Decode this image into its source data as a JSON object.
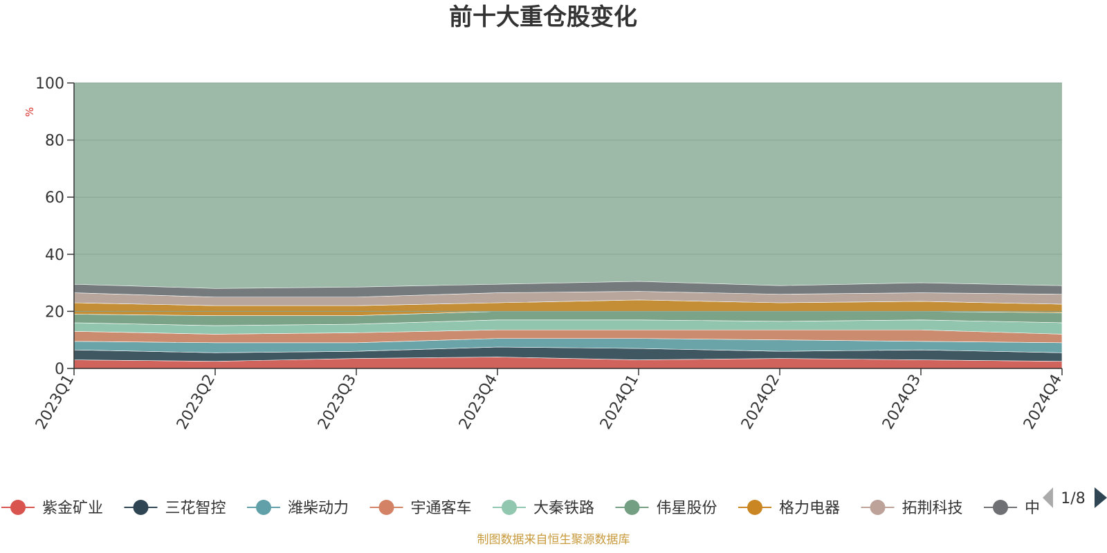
{
  "colors": {
    "background_series": "#9dbaa8",
    "grid": "#86a593",
    "axis": "#333333",
    "source_text": "#c89a3c",
    "unit_text": "#d9312b",
    "pager_inactive": "#aaaaaa",
    "pager_active": "#2f4554"
  },
  "chart_data": {
    "type": "area",
    "title": "前十大重仓股变化",
    "ylabel": "%",
    "ylim": [
      0,
      100
    ],
    "yticks": [
      0,
      20,
      40,
      60,
      80,
      100
    ],
    "grid": true,
    "legend_position": "bottom",
    "categories": [
      "2023Q1",
      "2023Q2",
      "2023Q3",
      "2023Q4",
      "2024Q1",
      "2024Q2",
      "2024Q3",
      "2024Q4"
    ],
    "series": [
      {
        "name": "紫金矿业",
        "color": "#d9534f",
        "values": [
          3.0,
          2.5,
          3.5,
          4.0,
          3.0,
          3.5,
          3.0,
          2.5
        ]
      },
      {
        "name": "三花智控",
        "color": "#2f4554",
        "values": [
          3.5,
          3.0,
          2.5,
          3.5,
          4.0,
          2.5,
          3.5,
          3.0
        ]
      },
      {
        "name": "潍柴动力",
        "color": "#61a0a8",
        "values": [
          3.0,
          3.5,
          3.0,
          3.0,
          3.5,
          4.0,
          3.0,
          3.5
        ]
      },
      {
        "name": "宇通客车",
        "color": "#d48265",
        "values": [
          3.5,
          3.0,
          3.5,
          3.0,
          3.0,
          3.5,
          4.0,
          3.0
        ]
      },
      {
        "name": "大秦铁路",
        "color": "#91c7ae",
        "values": [
          3.0,
          3.0,
          3.0,
          3.5,
          3.5,
          3.0,
          3.5,
          4.0
        ]
      },
      {
        "name": "伟星股份",
        "color": "#749f83",
        "values": [
          3.0,
          3.5,
          3.0,
          3.0,
          3.0,
          3.5,
          3.0,
          3.5
        ]
      },
      {
        "name": "格力电器",
        "color": "#ca8622",
        "values": [
          4.0,
          3.5,
          3.5,
          3.0,
          4.0,
          3.0,
          3.5,
          3.0
        ]
      },
      {
        "name": "拓荆科技",
        "color": "#bda29a",
        "values": [
          3.5,
          3.0,
          3.0,
          3.5,
          3.0,
          3.0,
          3.0,
          3.5
        ]
      },
      {
        "name": "中",
        "color": "#6e7074",
        "values": [
          3.0,
          3.0,
          3.5,
          3.0,
          3.5,
          3.0,
          3.5,
          3.0
        ]
      }
    ],
    "background_series_values": [
      100,
      100,
      100,
      100,
      100,
      100,
      100,
      100
    ]
  },
  "legend": {
    "items": [
      "紫金矿业",
      "三花智控",
      "潍柴动力",
      "宇通客车",
      "大秦铁路",
      "伟星股份",
      "格力电器",
      "拓荆科技",
      "中"
    ],
    "page_indicator": "1/8"
  },
  "source_note": "制图数据来自恒生聚源数据库"
}
